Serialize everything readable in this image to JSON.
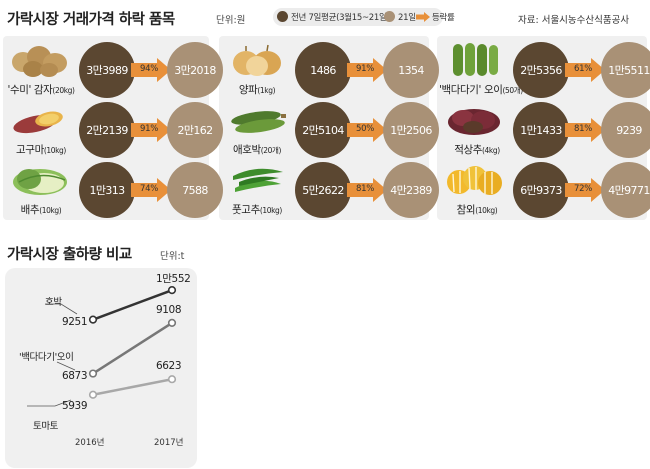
{
  "header": {
    "title": "가락시장 거래가격 하락 품목",
    "unit": "단위:원",
    "source": "자료: 서울시농수산식품공사"
  },
  "legend": {
    "prev_label": "전년 7일평균(3월15~21일)",
    "now_label": "21일",
    "rate_label": "등락률",
    "prev_color": "#5b4731",
    "now_color": "#a99176",
    "arrow_color": "#e8903a"
  },
  "items": [
    {
      "name": "'수미' 감자",
      "unit": "(20kg)",
      "prev": "3만3989",
      "rate": "94%",
      "now": "3만2018",
      "icon": "potato-image"
    },
    {
      "name": "고구마",
      "unit": "(10kg)",
      "prev": "2만2139",
      "rate": "91%",
      "now": "2만162",
      "icon": "sweet-potato-image"
    },
    {
      "name": "배추",
      "unit": "(10kg)",
      "prev": "1만313",
      "rate": "74%",
      "now": "7588",
      "icon": "cabbage-image"
    },
    {
      "name": "양파",
      "unit": "(1kg)",
      "prev": "1486",
      "rate": "91%",
      "now": "1354",
      "icon": "onion-image"
    },
    {
      "name": "애호박",
      "unit": "(20개)",
      "prev": "2만5104",
      "rate": "50%",
      "now": "1만2506",
      "icon": "zucchini-image"
    },
    {
      "name": "풋고추",
      "unit": "(10kg)",
      "prev": "5만2622",
      "rate": "81%",
      "now": "4만2389",
      "icon": "green-pepper-image"
    },
    {
      "name": "'백다다기' 오이",
      "unit": "(50개)",
      "prev": "2만5356",
      "rate": "61%",
      "now": "1만5511",
      "icon": "cucumber-image"
    },
    {
      "name": "적상추",
      "unit": "(4kg)",
      "prev": "1만1433",
      "rate": "81%",
      "now": "9239",
      "icon": "red-lettuce-image"
    },
    {
      "name": "참외",
      "unit": "(10kg)",
      "prev": "6만9373",
      "rate": "72%",
      "now": "4만9771",
      "icon": "korean-melon-image"
    }
  ],
  "chart_header": {
    "title": "가락시장 출하량 비교",
    "unit": "단위:t"
  },
  "chart_data": {
    "type": "line",
    "title": "가락시장 출하량 비교",
    "unit": "t",
    "categories": [
      "2016년",
      "2017년"
    ],
    "series": [
      {
        "name": "호박",
        "values": [
          9251,
          10552
        ],
        "labels": [
          "9251",
          "1만552"
        ]
      },
      {
        "name": "'백다다기'오이",
        "values": [
          6873,
          9108
        ],
        "labels": [
          "6873",
          "9108"
        ]
      },
      {
        "name": "토마토",
        "values": [
          5939,
          6623
        ],
        "labels": [
          "5939",
          "6623"
        ]
      }
    ],
    "colors": [
      "#333333",
      "#777777",
      "#a8a8a8"
    ]
  }
}
